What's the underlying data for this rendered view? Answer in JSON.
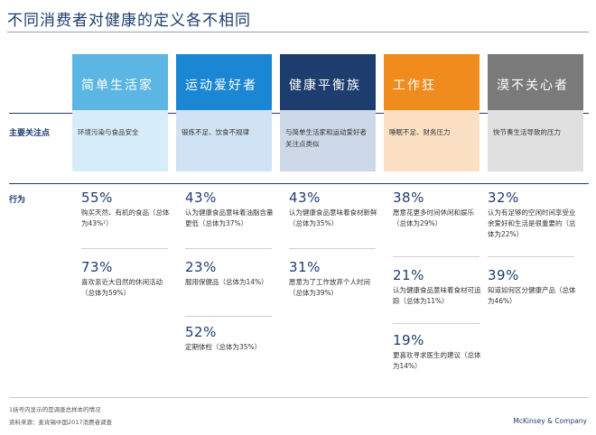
{
  "title": "不同消费者对健康的定义各不相同",
  "row_labels": {
    "focus": "主要关注点",
    "behavior": "行为"
  },
  "segments": [
    {
      "name": "简单生活家",
      "color": "#5bb6e3",
      "focus": "环境污染与食品安全",
      "stats": [
        {
          "pct": "55%",
          "desc": "购买天然、有机的食品（总体为43%¹）"
        },
        {
          "pct": "73%",
          "desc": "喜欢亲近大自然的休闲活动（总体为59%）"
        }
      ]
    },
    {
      "name": "运动爱好者",
      "color": "#1b87d4",
      "focus": "锻炼不足、饮食不规律",
      "stats": [
        {
          "pct": "43%",
          "desc": "认为健康食品意味着油脂含量更低（总体为37%）"
        },
        {
          "pct": "23%",
          "desc": "服用保健品（总体为14%）"
        },
        {
          "pct": "52%",
          "desc": "定期体检（总体为35%）"
        }
      ]
    },
    {
      "name": "健康平衡族",
      "color": "#1d3d6e",
      "focus": "与简单生活家和运动爱好者关注点类似",
      "stats": [
        {
          "pct": "43%",
          "desc": "认为健康食品意味着食材新鲜（总体为35%）"
        },
        {
          "pct": "31%",
          "desc": "愿意为了工作放弃个人时间（总体为39%）"
        }
      ]
    },
    {
      "name": "工作狂",
      "color": "#f08c1e",
      "focus": "睡眠不足、财务压力",
      "stats": [
        {
          "pct": "38%",
          "desc": "愿意花更多时间休闲和娱乐（总体为29%）"
        },
        {
          "pct": "21%",
          "desc": "认为健康食品意味着食材可追踪（总体为11%）"
        },
        {
          "pct": "19%",
          "desc": "更喜欢寻求医生的建议（总体为14%）"
        }
      ]
    },
    {
      "name": "漠不关心者",
      "color": "#7a7a7a",
      "focus": "快节奏生活导致的压力",
      "stats": [
        {
          "pct": "32%",
          "desc": "认为有足够的空闲时间享受业余爱好和生活是很重要的（总体为22%）"
        },
        {
          "pct": "39%",
          "desc": "知道如何区分健康产品（总体为46%）"
        }
      ]
    }
  ],
  "footnote": "1括号内显示的是调查总样本的情况",
  "source": "资料来源：麦肯锡中国2017消费者调查",
  "brand": "McKinsey & Company"
}
